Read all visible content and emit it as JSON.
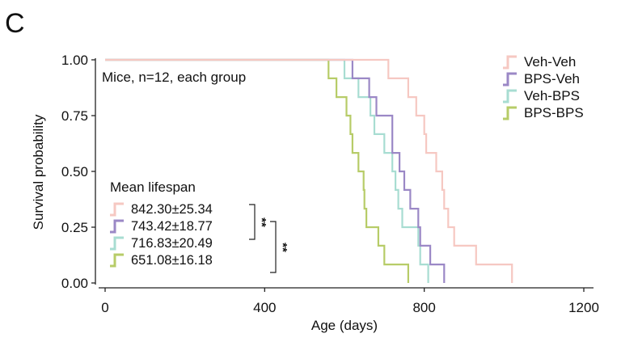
{
  "panel_label": "C",
  "chart_data": {
    "type": "line",
    "subtype": "kaplan-meier step",
    "xlabel": "Age (days)",
    "ylabel": "Survival probability",
    "xlim": [
      0,
      1200
    ],
    "ylim": [
      0,
      1
    ],
    "x_ticks": [
      0,
      400,
      800,
      1200
    ],
    "y_ticks": [
      0,
      0.25,
      0.5,
      0.75,
      1.0
    ],
    "y_tick_labels": [
      "0.00",
      "0.25",
      "0.50",
      "0.75",
      "1.00"
    ],
    "grid": false,
    "legend_position": "top-right",
    "annotation": "Mice, n=12, each group",
    "series": [
      {
        "name": "Veh-Veh",
        "color": "#f6c8c2",
        "steps": [
          [
            0,
            1.0
          ],
          [
            710,
            1.0
          ],
          [
            710,
            0.917
          ],
          [
            760,
            0.917
          ],
          [
            760,
            0.833
          ],
          [
            780,
            0.833
          ],
          [
            780,
            0.75
          ],
          [
            800,
            0.75
          ],
          [
            800,
            0.667
          ],
          [
            805,
            0.667
          ],
          [
            805,
            0.583
          ],
          [
            830,
            0.583
          ],
          [
            830,
            0.5
          ],
          [
            845,
            0.5
          ],
          [
            845,
            0.417
          ],
          [
            850,
            0.417
          ],
          [
            850,
            0.333
          ],
          [
            860,
            0.333
          ],
          [
            860,
            0.25
          ],
          [
            875,
            0.25
          ],
          [
            875,
            0.167
          ],
          [
            930,
            0.167
          ],
          [
            930,
            0.083
          ],
          [
            1020,
            0.083
          ],
          [
            1020,
            0.0
          ]
        ]
      },
      {
        "name": "BPS-Veh",
        "color": "#9b88c6",
        "steps": [
          [
            0,
            1.0
          ],
          [
            620,
            1.0
          ],
          [
            620,
            0.917
          ],
          [
            662,
            0.917
          ],
          [
            662,
            0.833
          ],
          [
            680,
            0.833
          ],
          [
            680,
            0.75
          ],
          [
            720,
            0.75
          ],
          [
            720,
            0.583
          ],
          [
            738,
            0.583
          ],
          [
            738,
            0.5
          ],
          [
            750,
            0.5
          ],
          [
            750,
            0.417
          ],
          [
            765,
            0.417
          ],
          [
            765,
            0.333
          ],
          [
            785,
            0.333
          ],
          [
            785,
            0.25
          ],
          [
            790,
            0.25
          ],
          [
            790,
            0.167
          ],
          [
            815,
            0.167
          ],
          [
            815,
            0.083
          ],
          [
            850,
            0.083
          ],
          [
            850,
            0.0
          ]
        ]
      },
      {
        "name": "Veh-BPS",
        "color": "#a8ddd2",
        "steps": [
          [
            0,
            1.0
          ],
          [
            600,
            1.0
          ],
          [
            600,
            0.917
          ],
          [
            635,
            0.917
          ],
          [
            635,
            0.833
          ],
          [
            665,
            0.833
          ],
          [
            665,
            0.75
          ],
          [
            675,
            0.75
          ],
          [
            675,
            0.667
          ],
          [
            700,
            0.667
          ],
          [
            700,
            0.583
          ],
          [
            720,
            0.583
          ],
          [
            720,
            0.5
          ],
          [
            728,
            0.5
          ],
          [
            728,
            0.417
          ],
          [
            735,
            0.417
          ],
          [
            735,
            0.333
          ],
          [
            745,
            0.333
          ],
          [
            745,
            0.25
          ],
          [
            785,
            0.25
          ],
          [
            785,
            0.167
          ],
          [
            790,
            0.167
          ],
          [
            790,
            0.083
          ],
          [
            810,
            0.083
          ],
          [
            810,
            0.0
          ]
        ]
      },
      {
        "name": "BPS-BPS",
        "color": "#b7cc68",
        "steps": [
          [
            0,
            1.0
          ],
          [
            560,
            1.0
          ],
          [
            560,
            0.917
          ],
          [
            580,
            0.917
          ],
          [
            580,
            0.833
          ],
          [
            605,
            0.833
          ],
          [
            605,
            0.75
          ],
          [
            615,
            0.75
          ],
          [
            615,
            0.667
          ],
          [
            620,
            0.667
          ],
          [
            620,
            0.583
          ],
          [
            635,
            0.583
          ],
          [
            635,
            0.5
          ],
          [
            648,
            0.5
          ],
          [
            648,
            0.417
          ],
          [
            650,
            0.417
          ],
          [
            650,
            0.333
          ],
          [
            655,
            0.333
          ],
          [
            655,
            0.25
          ],
          [
            685,
            0.25
          ],
          [
            685,
            0.167
          ],
          [
            700,
            0.167
          ],
          [
            700,
            0.083
          ],
          [
            760,
            0.083
          ],
          [
            760,
            0.0
          ]
        ]
      }
    ]
  },
  "mean_lifespan": {
    "title": "Mean lifespan",
    "values": [
      "842.30±25.34",
      "743.42±18.77",
      "716.83±20.49",
      "651.08±16.18"
    ],
    "significance": [
      "**",
      "**"
    ]
  }
}
